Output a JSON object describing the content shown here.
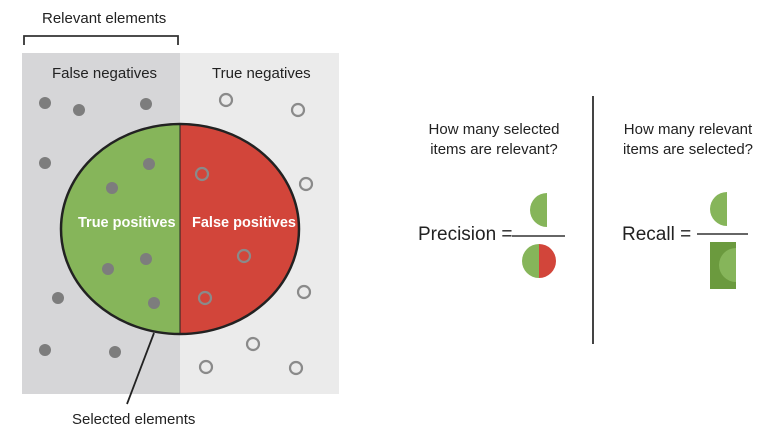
{
  "relevant_label": "Relevant elements",
  "selected_label": "Selected elements",
  "false_negatives_label": "False negatives",
  "true_negatives_label": "True negatives",
  "true_positives_label": "True positives",
  "false_positives_label": "False positives",
  "precision": {
    "question_line1": "How many selected",
    "question_line2": "items are relevant?",
    "label": "Precision ="
  },
  "recall": {
    "question_line1": "How many relevant",
    "question_line2": "items are selected?",
    "label": "Recall ="
  },
  "colors": {
    "relevant_bg": "#d6d6d8",
    "nonrelevant_bg": "#ebebeb",
    "true_positive_green": "#86b55a",
    "false_positive_red": "#d2453a",
    "recall_box_green": "#6b9a3e",
    "relevant_dot": "#7d7d7d",
    "nonrelevant_ring": "#8a8a8a"
  }
}
